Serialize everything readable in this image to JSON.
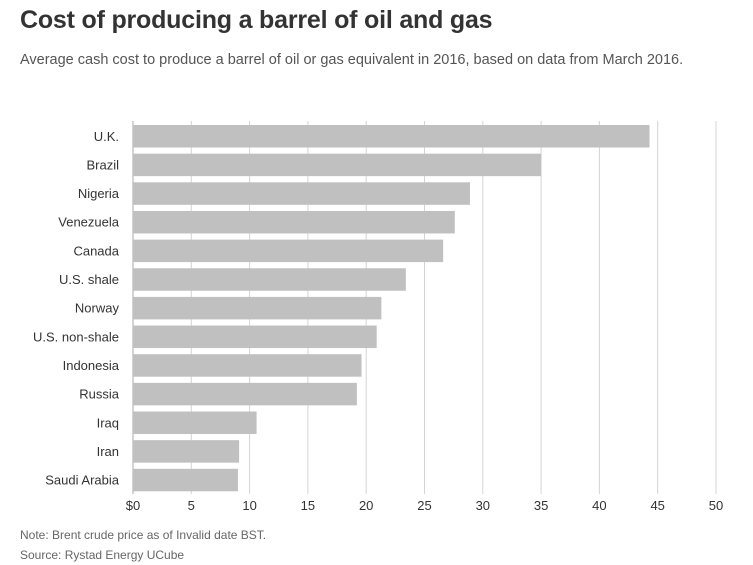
{
  "header": {
    "title": "Cost of producing a barrel of oil and gas",
    "subtitle": "Average cash cost to produce a barrel of oil or gas equivalent in 2016, based on data from March 2016."
  },
  "footer": {
    "note": "Note: Brent crude price as of Invalid date BST.",
    "source": "Source: Rystad Energy UCube"
  },
  "colors": {
    "bar": "#c0c0c0",
    "grid": "#d4d4d4",
    "text": "#333333"
  },
  "chart_data": {
    "type": "bar",
    "orientation": "horizontal",
    "categories": [
      "U.K.",
      "Brazil",
      "Nigeria",
      "Venezuela",
      "Canada",
      "U.S. shale",
      "Norway",
      "U.S. non-shale",
      "Indonesia",
      "Russia",
      "Iraq",
      "Iran",
      "Saudi Arabia"
    ],
    "values": [
      44.3,
      35.0,
      28.9,
      27.6,
      26.6,
      23.4,
      21.3,
      20.9,
      19.6,
      19.2,
      10.6,
      9.1,
      9.0
    ],
    "xlim": [
      0,
      50
    ],
    "xticks": [
      "$0",
      "5",
      "10",
      "15",
      "20",
      "25",
      "30",
      "35",
      "40",
      "45",
      "50"
    ],
    "xtick_values": [
      0,
      5,
      10,
      15,
      20,
      25,
      30,
      35,
      40,
      45,
      50
    ],
    "grid": true,
    "legend": "none"
  }
}
